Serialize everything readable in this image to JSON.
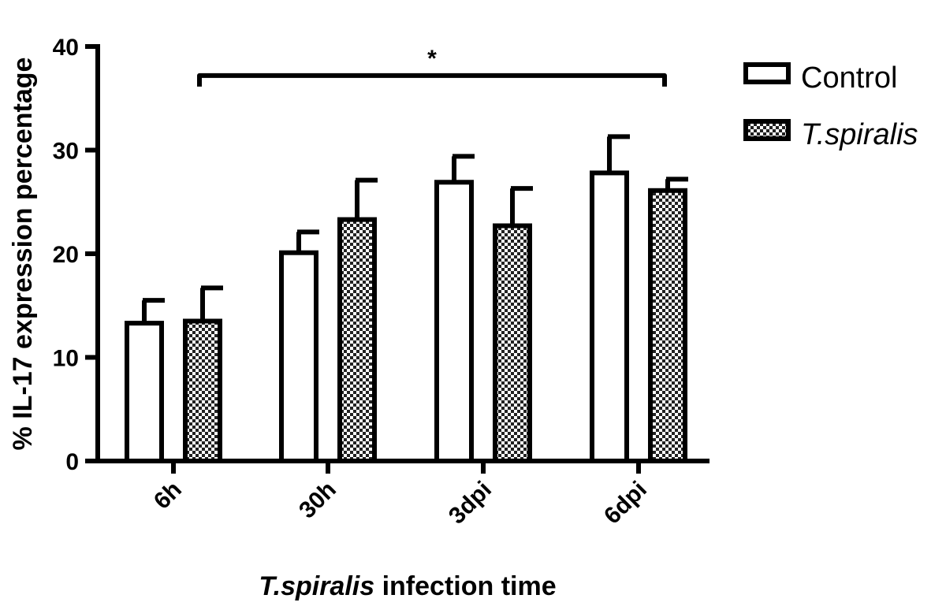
{
  "chart_data": {
    "type": "bar",
    "title": "",
    "xlabel_italic": "T.spiralis",
    "xlabel_rest": " infection time",
    "ylabel": "% IL-17 expression percentage",
    "ylim": [
      0,
      40
    ],
    "yticks": [
      "0",
      "10",
      "20",
      "30",
      "40"
    ],
    "categories": [
      "6h",
      "30h",
      "3dpi",
      "6dpi"
    ],
    "series": [
      {
        "name": "Control",
        "values": [
          13.3,
          20.1,
          26.9,
          27.8
        ],
        "errors": [
          2.2,
          2.0,
          2.5,
          3.5
        ],
        "pattern": "none"
      },
      {
        "name": "T.spiralis",
        "values": [
          13.5,
          23.3,
          22.7,
          26.1
        ],
        "errors": [
          3.2,
          3.8,
          3.6,
          1.1
        ],
        "pattern": "checker"
      }
    ],
    "significance": {
      "label": "*",
      "from": "6h",
      "to": "6dpi",
      "level": 37.2
    },
    "legend_position": "top-right"
  },
  "colors": {
    "bar_fill": "#ffffff",
    "stroke": "#000000",
    "checker_dark": "#222222"
  }
}
